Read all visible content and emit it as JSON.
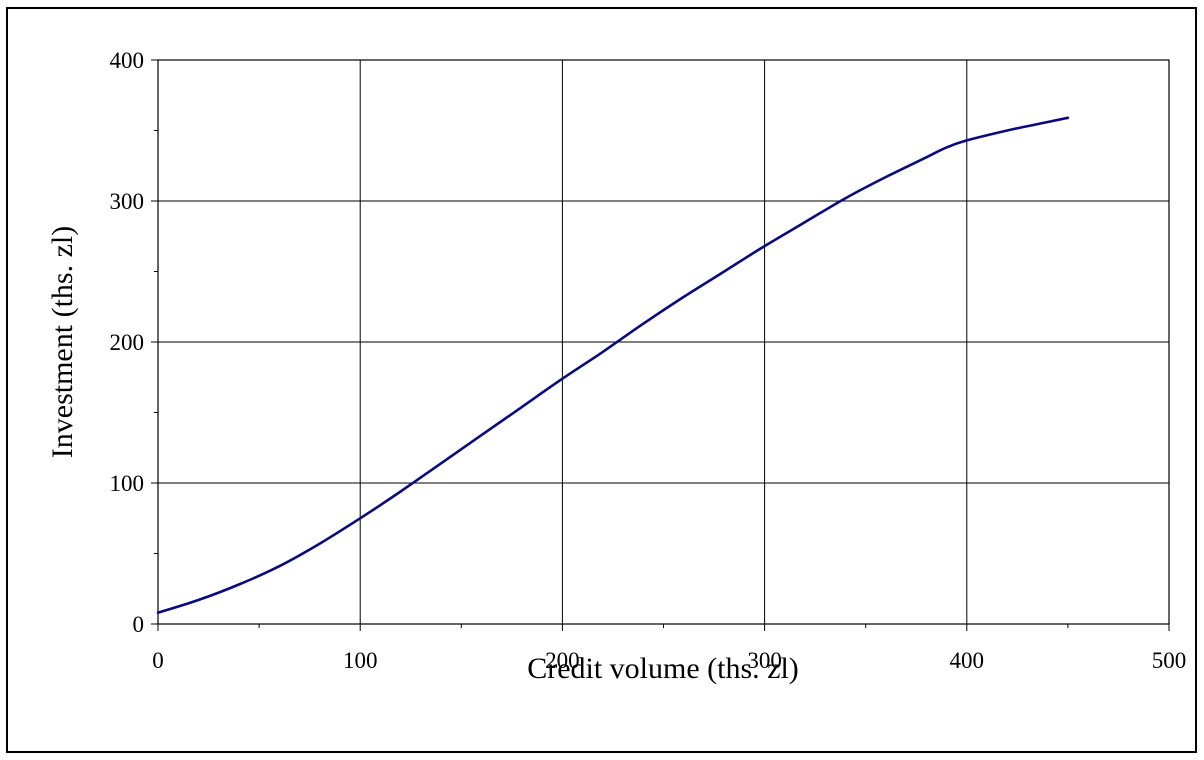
{
  "chart_data": {
    "type": "line",
    "title": "",
    "xlabel": "Credit volume (ths. zl)",
    "ylabel": "Investment (ths. zl)",
    "xlim": [
      0,
      500
    ],
    "ylim": [
      0,
      400
    ],
    "x_ticks": [
      "0",
      "100",
      "200",
      "300",
      "400",
      "500"
    ],
    "y_ticks": [
      "0",
      "100",
      "200",
      "300",
      "400"
    ],
    "grid": true,
    "legend": "none",
    "series": [
      {
        "color": "#0a0a80",
        "x": [
          0,
          20,
          40,
          60,
          80,
          100,
          120,
          140,
          160,
          180,
          200,
          220,
          240,
          260,
          280,
          300,
          320,
          340,
          360,
          380,
          390,
          400,
          420,
          440,
          450
        ],
        "y": [
          8,
          17,
          28,
          41,
          57,
          75,
          94,
          114,
          134,
          154,
          174,
          193,
          213,
          232,
          250,
          268,
          285,
          302,
          317,
          331,
          338,
          343,
          350,
          356,
          359
        ]
      }
    ]
  }
}
